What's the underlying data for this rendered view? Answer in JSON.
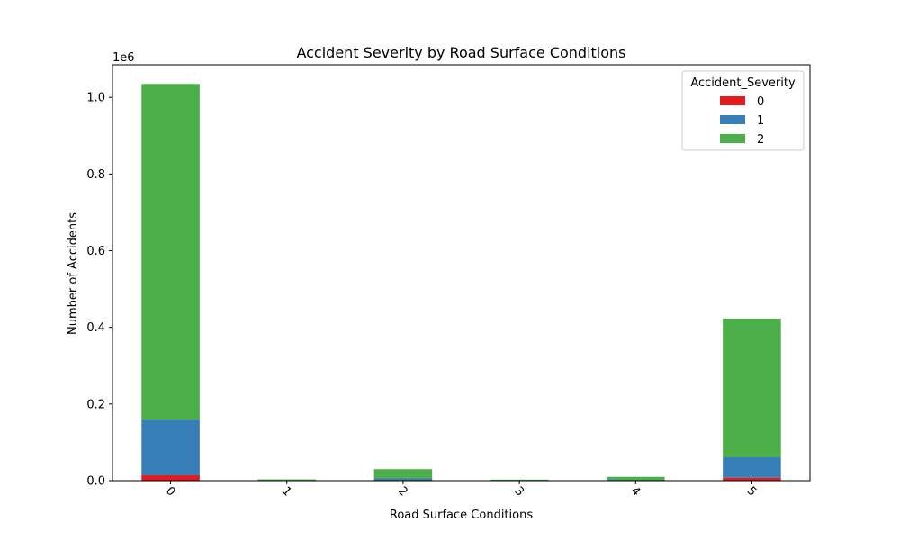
{
  "chart_data": {
    "type": "bar",
    "stacked": true,
    "title": "Accident Severity by Road Surface Conditions",
    "xlabel": "Road Surface Conditions",
    "ylabel": "Number of Accidents",
    "offset_text": "1e6",
    "categories": [
      "0",
      "1",
      "2",
      "3",
      "4",
      "5"
    ],
    "y_ticks": [
      0.0,
      0.2,
      0.4,
      0.6,
      0.8,
      1.0
    ],
    "y_tick_labels": [
      "0.0",
      "0.2",
      "0.4",
      "0.6",
      "0.8",
      "1.0"
    ],
    "ylim": [
      0,
      1.085
    ],
    "legend": {
      "title": "Accident_Severity",
      "placement": "top-right"
    },
    "series": [
      {
        "name": "0",
        "color": "#e41a1c",
        "values": [
          0.014,
          0.0003,
          0.0015,
          0.0001,
          0.0004,
          0.0075
        ]
      },
      {
        "name": "1",
        "color": "#377eb8",
        "values": [
          0.145,
          0.0007,
          0.0045,
          0.0003,
          0.0016,
          0.0535
        ]
      },
      {
        "name": "2",
        "color": "#4daf4a",
        "values": [
          0.876,
          0.0015,
          0.024,
          0.0012,
          0.008,
          0.362
        ]
      }
    ]
  }
}
